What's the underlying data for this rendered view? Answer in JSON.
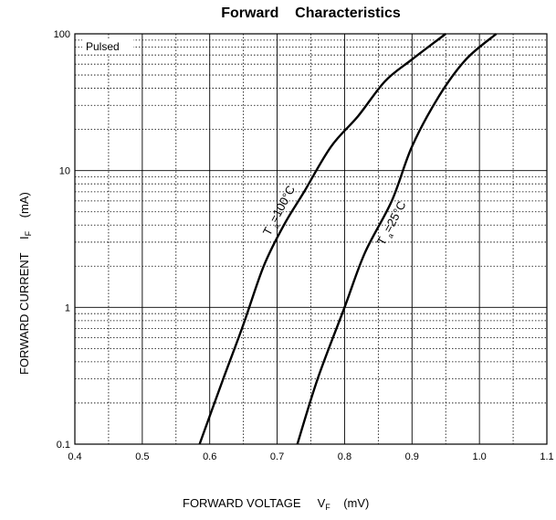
{
  "chart_data": {
    "type": "line",
    "title": "Forward    Characteristics",
    "xlabel": {
      "text": "FORWARD VOLTAGE",
      "symbol": "V",
      "subscript": "F",
      "unit": "(mV)"
    },
    "ylabel": {
      "text": "FORWARD CURRENT",
      "symbol": "I",
      "subscript": "F",
      "unit": "(mA)"
    },
    "xlim": [
      0.4,
      1.1
    ],
    "ylim": [
      0.1,
      100
    ],
    "yscale": "log",
    "x_ticks": [
      "0.4",
      "0.5",
      "0.6",
      "0.7",
      "0.8",
      "0.9",
      "1.0",
      "1.1"
    ],
    "y_ticks": [
      "0.1",
      "1",
      "10",
      "100"
    ],
    "grid": true,
    "annotation": "Pulsed",
    "series": [
      {
        "name": "Ta=100°C",
        "label_main": "T",
        "label_sub": "a",
        "label_rest": "=100°C",
        "points": [
          [
            0.585,
            0.1
          ],
          [
            0.62,
            0.3
          ],
          [
            0.65,
            0.75
          ],
          [
            0.68,
            2.0
          ],
          [
            0.71,
            4.0
          ],
          [
            0.74,
            7.0
          ],
          [
            0.78,
            15
          ],
          [
            0.82,
            25
          ],
          [
            0.86,
            45
          ],
          [
            0.9,
            65
          ],
          [
            0.95,
            100
          ]
        ]
      },
      {
        "name": "Ta=25°C",
        "label_main": "T",
        "label_sub": "a",
        "label_rest": "=25°C",
        "points": [
          [
            0.73,
            0.1
          ],
          [
            0.76,
            0.3
          ],
          [
            0.8,
            1.0
          ],
          [
            0.83,
            2.5
          ],
          [
            0.87,
            6.0
          ],
          [
            0.9,
            15
          ],
          [
            0.94,
            35
          ],
          [
            0.98,
            65
          ],
          [
            1.025,
            100
          ]
        ]
      }
    ]
  }
}
